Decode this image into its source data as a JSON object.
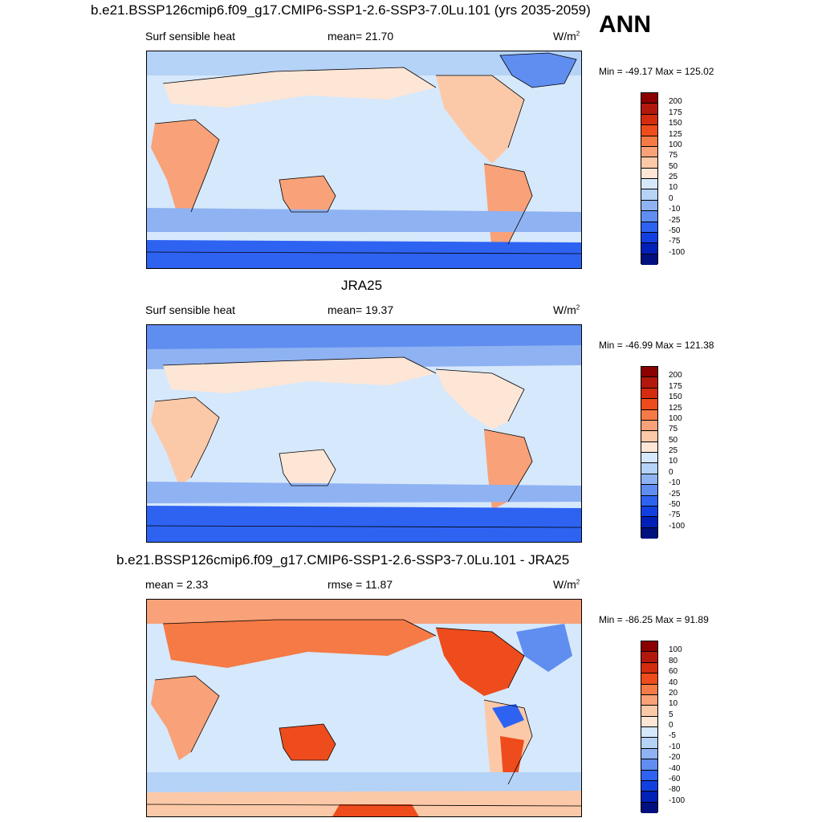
{
  "annotation": "ANN",
  "panels": [
    {
      "title": "b.e21.BSSP126cmip6.f09_g17.CMIP6-SSP1-2.6-SSP3-7.0Lu.101 (yrs 2035-2059)",
      "left": "Surf sensible heat",
      "center": "mean=  21.70",
      "units": "W/m",
      "units_sup": "2",
      "minmax": "Min = -49.17 Max = 125.02",
      "levels": [
        "200",
        "175",
        "150",
        "125",
        "100",
        "75",
        "50",
        "25",
        "10",
        "0",
        "-10",
        "-25",
        "-50",
        "-75",
        "-100"
      ],
      "colors": [
        "#8b0000",
        "#b2180c",
        "#d42c0e",
        "#ee4c1c",
        "#f57a45",
        "#f9a178",
        "#fcc9a8",
        "#fde6d6",
        "#d6e8fb",
        "#b5d2f7",
        "#8fb2f2",
        "#5f8ef0",
        "#2e63f2",
        "#1240e0",
        "#0020b8",
        "#00107e"
      ]
    },
    {
      "title": "JRA25",
      "left": "Surf sensible heat",
      "center": "mean=  19.37",
      "units": "W/m",
      "units_sup": "2",
      "minmax": "Min = -46.99 Max = 121.38",
      "levels": [
        "200",
        "175",
        "150",
        "125",
        "100",
        "75",
        "50",
        "25",
        "10",
        "0",
        "-10",
        "-25",
        "-50",
        "-75",
        "-100"
      ],
      "colors": [
        "#8b0000",
        "#b2180c",
        "#d42c0e",
        "#ee4c1c",
        "#f57a45",
        "#f9a178",
        "#fcc9a8",
        "#fde6d6",
        "#d6e8fb",
        "#b5d2f7",
        "#8fb2f2",
        "#5f8ef0",
        "#2e63f2",
        "#1240e0",
        "#0020b8",
        "#00107e"
      ]
    },
    {
      "title": "b.e21.BSSP126cmip6.f09_g17.CMIP6-SSP1-2.6-SSP3-7.0Lu.101 - JRA25",
      "left": "mean =   2.33",
      "center": "rmse =  11.87",
      "units": "W/m",
      "units_sup": "2",
      "minmax": "Min = -86.25 Max =  91.89",
      "levels": [
        "100",
        "80",
        "60",
        "40",
        "20",
        "10",
        "5",
        "0",
        "-5",
        "-10",
        "-20",
        "-40",
        "-60",
        "-80",
        "-100"
      ],
      "colors": [
        "#8b0000",
        "#b2180c",
        "#d42c0e",
        "#ee4c1c",
        "#f57a45",
        "#f9a178",
        "#fcc9a8",
        "#fde6d6",
        "#d6e8fb",
        "#b5d2f7",
        "#8fb2f2",
        "#5f8ef0",
        "#2e63f2",
        "#1240e0",
        "#0020b8",
        "#00107e"
      ]
    }
  ]
}
